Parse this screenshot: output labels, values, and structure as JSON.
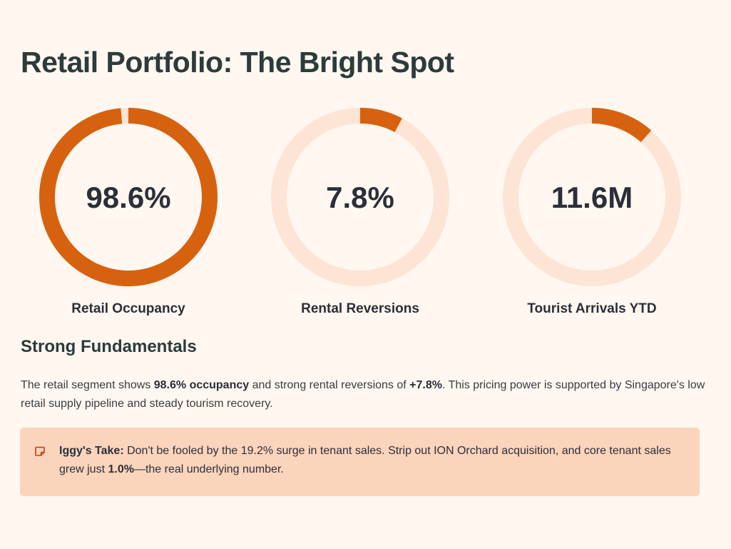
{
  "page": {
    "title": "Retail Portfolio: The Bright Spot"
  },
  "colors": {
    "accent": "#d6620f",
    "track": "#fde4d5",
    "background": "#fff7f0",
    "callout_bg": "#fbd4bc"
  },
  "stats": [
    {
      "value": "98.6%",
      "label": "Retail Occupancy",
      "fill_fraction": 0.986
    },
    {
      "value": "7.8%",
      "label": "Rental Reversions",
      "fill_fraction": 0.078
    },
    {
      "value": "11.6M",
      "label": "Tourist Arrivals YTD",
      "fill_fraction": 0.116
    }
  ],
  "fundamentals": {
    "heading": "Strong Fundamentals",
    "part1": "The retail segment shows ",
    "bold1": "98.6% occupancy",
    "part2": " and strong rental reversions of ",
    "bold2": "+7.8%",
    "part3": ". This pricing power is supported by Singapore's low retail supply pipeline and steady tourism recovery."
  },
  "callout": {
    "icon": "note-icon",
    "label": "Iggy's Take:",
    "part1": " Don't be fooled by the 19.2% surge in tenant sales. Strip out ION Orchard acquisition, and core tenant sales grew just ",
    "bold": "1.0%",
    "part2": "—the real underlying number."
  }
}
